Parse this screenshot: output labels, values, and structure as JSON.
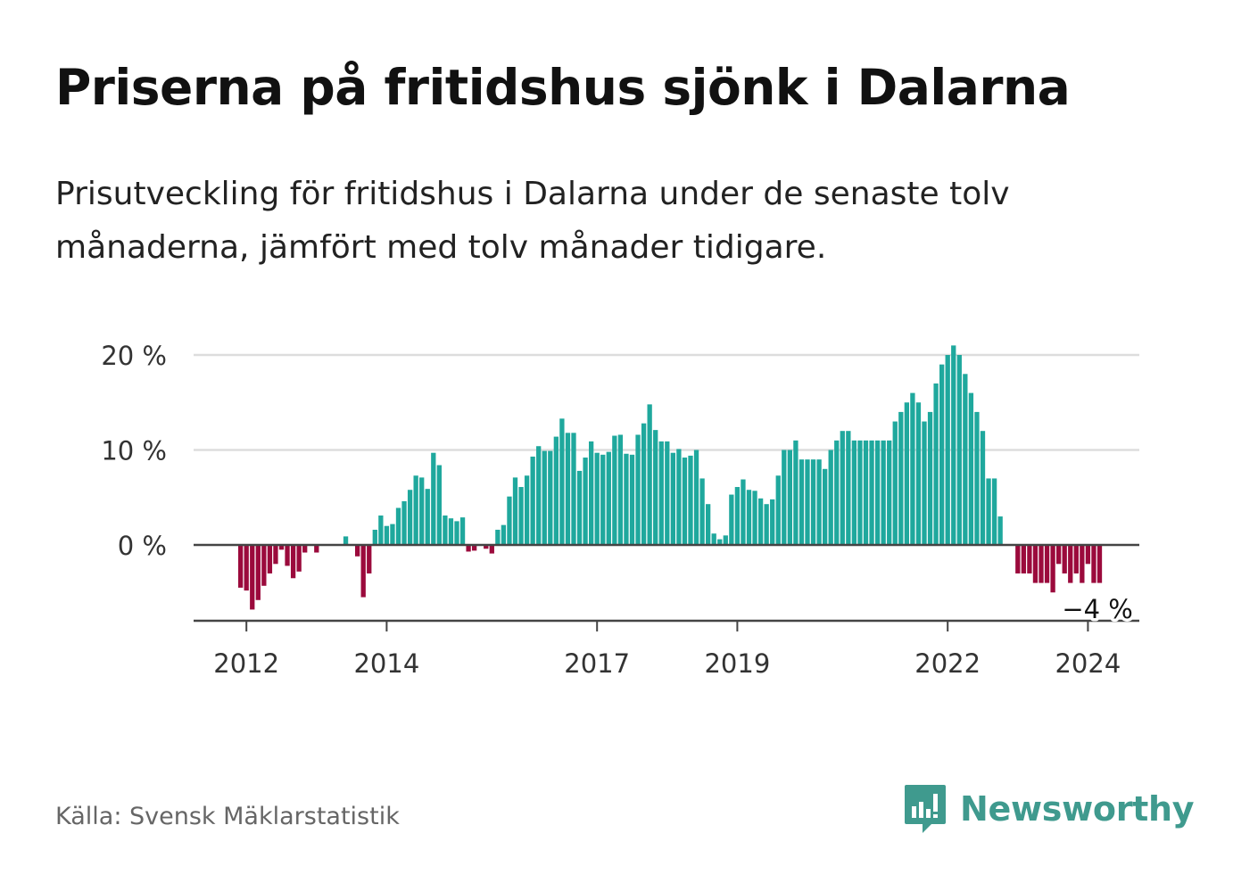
{
  "title": "Priserna på fritidshus sjönk i Dalarna",
  "subtitle": "Prisutveckling för fritidshus i Dalarna under de senaste tolv månaderna, jämfört med tolv månader tidigare.",
  "source": "Källa: Svensk Mäklarstatistik",
  "brand": {
    "name": "Newsworthy",
    "icon": "newsworthy-logo-icon",
    "color": "#3f9a8e"
  },
  "colors": {
    "positive": "#1fa89d",
    "negative": "#9b0a3c",
    "grid": "#dddddd",
    "axis": "#444444"
  },
  "chart_data": {
    "type": "bar",
    "title": "Priserna på fritidshus sjönk i Dalarna",
    "xlabel": "",
    "ylabel": "",
    "ylim": [
      -8,
      22
    ],
    "yticks": [
      0,
      10,
      20
    ],
    "ytick_labels": [
      "0 %",
      "10 %",
      "20 %"
    ],
    "xticks": [
      {
        "label": "2012",
        "index": 1
      },
      {
        "label": "2014",
        "index": 25
      },
      {
        "label": "2017",
        "index": 61
      },
      {
        "label": "2019",
        "index": 85
      },
      {
        "label": "2022",
        "index": 121
      },
      {
        "label": "2024",
        "index": 145
      }
    ],
    "start": "2011-12",
    "last_value_label": "−4 %",
    "unit": "%",
    "values": [
      -4.5,
      -4.8,
      -6.8,
      -5.8,
      -4.3,
      -3.0,
      -2.0,
      -0.5,
      -2.2,
      -3.5,
      -2.8,
      -0.8,
      0.0,
      -0.8,
      0.0,
      0.0,
      0.0,
      0.0,
      0.9,
      0.0,
      -1.2,
      -5.5,
      -3.0,
      1.6,
      3.1,
      2.0,
      2.2,
      3.9,
      4.6,
      5.8,
      7.3,
      7.1,
      5.9,
      9.7,
      8.4,
      3.1,
      2.8,
      2.5,
      2.9,
      -0.7,
      -0.6,
      0.0,
      -0.4,
      -0.9,
      1.6,
      2.1,
      5.1,
      7.1,
      6.1,
      7.3,
      9.3,
      10.4,
      9.9,
      9.9,
      11.4,
      13.3,
      11.8,
      11.8,
      7.8,
      9.2,
      10.9,
      9.7,
      9.5,
      9.8,
      11.5,
      11.6,
      9.6,
      9.5,
      11.6,
      12.8,
      14.8,
      12.1,
      10.9,
      10.9,
      9.7,
      10.1,
      9.2,
      9.4,
      10.0,
      7.0,
      4.3,
      1.2,
      0.6,
      1.0,
      5.3,
      6.1,
      6.9,
      5.8,
      5.7,
      4.9,
      4.3,
      4.8,
      7.3,
      10.0,
      10.0,
      11.0,
      9.0,
      9.0,
      9.0,
      9.0,
      8.0,
      10.0,
      11.0,
      12.0,
      12.0,
      11.0,
      11.0,
      11.0,
      11.0,
      11.0,
      11.0,
      11.0,
      13.0,
      14.0,
      15.0,
      16.0,
      15.0,
      13.0,
      14.0,
      17.0,
      19.0,
      20.0,
      21.0,
      20.0,
      18.0,
      16.0,
      14.0,
      12.0,
      7.0,
      7.0,
      3.0,
      0.0,
      0.0,
      -3.0,
      -3.0,
      -3.0,
      -4.0,
      -4.0,
      -4.0,
      -5.0,
      -2.0,
      -3.0,
      -4.0,
      -3.0,
      -4.0,
      -2.0,
      -4.0,
      -4.0
    ]
  }
}
